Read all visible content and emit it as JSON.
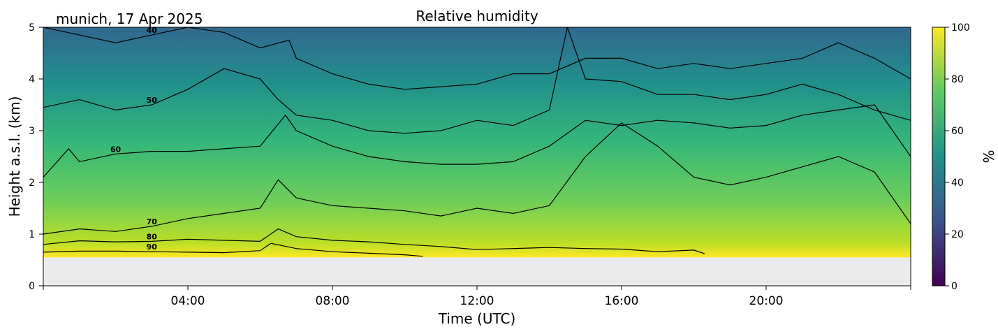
{
  "figure": {
    "title": "Relative humidity",
    "location_date": "munich, 17 Apr 2025"
  },
  "chart_data": {
    "type": "heatmap",
    "title": "Relative humidity",
    "xlabel": "Time (UTC)",
    "ylabel": "Height a.s.l. (km)",
    "xlim": [
      0,
      24
    ],
    "ylim": [
      0,
      5
    ],
    "x_ticks": [
      4,
      8,
      12,
      16,
      20
    ],
    "x_tick_labels": [
      "04:00",
      "08:00",
      "12:00",
      "16:00",
      "20:00"
    ],
    "y_ticks": [
      0,
      1,
      2,
      3,
      4,
      5
    ],
    "y_tick_labels": [
      "0",
      "1",
      "2",
      "3",
      "4",
      "5"
    ],
    "data_bottom_km": 0.55,
    "colorbar": {
      "label": "%",
      "range": [
        0,
        100
      ],
      "ticks": [
        0,
        20,
        40,
        60,
        80,
        100
      ],
      "tick_labels": [
        "0",
        "20",
        "40",
        "60",
        "80",
        "100"
      ],
      "colormap": "viridis"
    },
    "colormap_stops": [
      "#440154",
      "#3b528b",
      "#21918c",
      "#5ec962",
      "#fde725"
    ],
    "missing_color": "#ebebeb",
    "contour_line_color": "#000000",
    "contours": [
      {
        "level": 90,
        "label": "90",
        "x": [
          0,
          1,
          2,
          3,
          4,
          5,
          6,
          6.3,
          7,
          8,
          9,
          10,
          10.5
        ],
        "y": [
          0.65,
          0.67,
          0.67,
          0.66,
          0.65,
          0.64,
          0.68,
          0.82,
          0.72,
          0.66,
          0.63,
          0.6,
          0.57
        ]
      },
      {
        "level": 80,
        "label": "80",
        "x": [
          0,
          1,
          2,
          3,
          4,
          5,
          6,
          6.5,
          7,
          8,
          9,
          10,
          11,
          12,
          13,
          14,
          15,
          16,
          17,
          18,
          18.3
        ],
        "y": [
          0.8,
          0.87,
          0.85,
          0.86,
          0.9,
          0.88,
          0.86,
          1.1,
          0.95,
          0.88,
          0.85,
          0.8,
          0.76,
          0.7,
          0.72,
          0.74,
          0.72,
          0.71,
          0.66,
          0.69,
          0.62
        ]
      },
      {
        "level": 70,
        "label": "70",
        "x": [
          0,
          1,
          2,
          3,
          4,
          5,
          6,
          6.5,
          7,
          8,
          9,
          10,
          11,
          12,
          13,
          14,
          15,
          16,
          17,
          18,
          19,
          20,
          21,
          22,
          23,
          24
        ],
        "y": [
          1.0,
          1.1,
          1.05,
          1.15,
          1.3,
          1.4,
          1.5,
          2.05,
          1.7,
          1.55,
          1.5,
          1.45,
          1.35,
          1.5,
          1.4,
          1.55,
          2.5,
          3.15,
          2.7,
          2.1,
          1.95,
          2.1,
          2.3,
          2.5,
          2.2,
          1.2
        ]
      },
      {
        "level": 60,
        "label": "60",
        "x": [
          0,
          0.7,
          1,
          2,
          3,
          4,
          5,
          6,
          6.7,
          7,
          8,
          9,
          10,
          11,
          12,
          13,
          14,
          15,
          16,
          17,
          18,
          19,
          20,
          21,
          22,
          23,
          24
        ],
        "y": [
          2.1,
          2.65,
          2.4,
          2.55,
          2.6,
          2.6,
          2.65,
          2.7,
          3.3,
          3.0,
          2.7,
          2.5,
          2.4,
          2.35,
          2.35,
          2.4,
          2.7,
          3.2,
          3.1,
          3.2,
          3.15,
          3.05,
          3.1,
          3.3,
          3.4,
          3.5,
          2.5
        ]
      },
      {
        "level": 50,
        "label": "50",
        "x": [
          0,
          1,
          2,
          3,
          4,
          5,
          6,
          6.5,
          7,
          8,
          9,
          10,
          11,
          12,
          13,
          14,
          14.5,
          15,
          16,
          17,
          18,
          19,
          20,
          21,
          22,
          23,
          24
        ],
        "y": [
          3.45,
          3.6,
          3.4,
          3.5,
          3.8,
          4.2,
          4.0,
          3.6,
          3.3,
          3.2,
          3.0,
          2.95,
          3.0,
          3.2,
          3.1,
          3.4,
          5.0,
          4.0,
          3.95,
          3.7,
          3.7,
          3.6,
          3.7,
          3.9,
          3.7,
          3.4,
          3.2
        ]
      },
      {
        "level": 40,
        "label": "40",
        "x": [
          0,
          1,
          2,
          3,
          4,
          5,
          6,
          6.8,
          7,
          8,
          9,
          10,
          11,
          12,
          13,
          14,
          15,
          16,
          17,
          18,
          19,
          20,
          21,
          22,
          23,
          24
        ],
        "y": [
          5.0,
          4.85,
          4.7,
          4.85,
          5.0,
          4.9,
          4.6,
          4.75,
          4.4,
          4.1,
          3.9,
          3.8,
          3.85,
          3.9,
          4.1,
          4.1,
          4.4,
          4.4,
          4.2,
          4.3,
          4.2,
          4.3,
          4.4,
          4.7,
          4.4,
          4.0
        ]
      }
    ]
  }
}
